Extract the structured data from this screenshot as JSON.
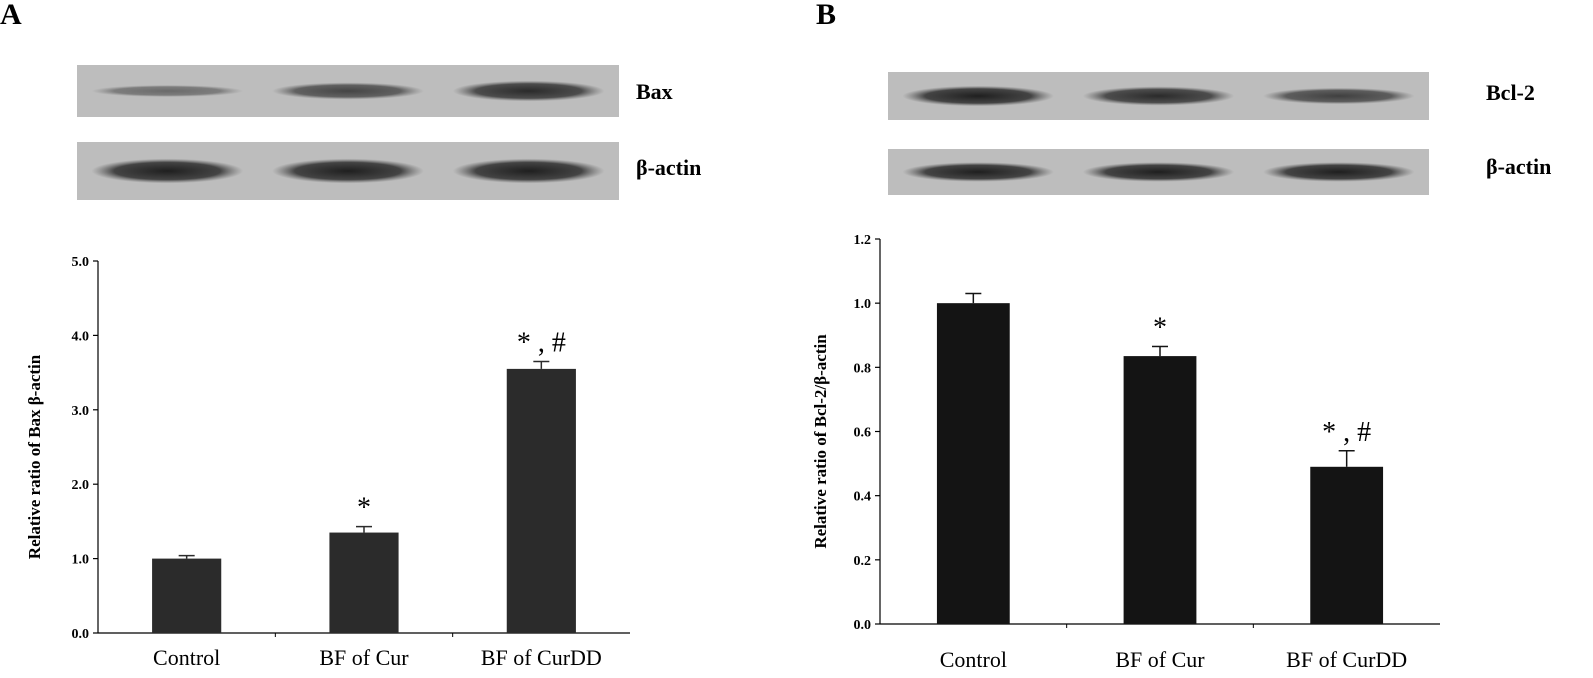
{
  "panels": [
    {
      "letter": "A",
      "blots": [
        {
          "label": "Bax",
          "band_intensity": [
            0.25,
            0.6,
            0.85
          ]
        },
        {
          "label": "β-actin",
          "band_intensity": [
            0.95,
            0.95,
            0.95
          ]
        }
      ]
    },
    {
      "letter": "B",
      "blots": [
        {
          "label": "Bcl-2",
          "band_intensity": [
            0.95,
            0.85,
            0.65
          ]
        },
        {
          "label": "β-actin",
          "band_intensity": [
            0.95,
            0.95,
            0.95
          ]
        }
      ]
    }
  ],
  "chart_data": [
    {
      "type": "bar",
      "categories": [
        "Control",
        "BF of Cur",
        "BF of CurDD"
      ],
      "values": [
        1.0,
        1.35,
        3.55
      ],
      "errors": [
        0.04,
        0.08,
        0.1
      ],
      "significance": [
        "",
        "*",
        "* , #"
      ],
      "ylabel": "Relative ratio of Bax β-actin",
      "ylim": [
        0.0,
        5.0
      ],
      "yticks": [
        "0.0",
        "1.0",
        "2.0",
        "3.0",
        "4.0",
        "5.0"
      ],
      "ytick_values": [
        0,
        1,
        2,
        3,
        4,
        5
      ],
      "bar_color": "#2b2b2b",
      "grid": false
    },
    {
      "type": "bar",
      "categories": [
        "Control",
        "BF of Cur",
        "BF of CurDD"
      ],
      "values": [
        1.0,
        0.835,
        0.49
      ],
      "errors": [
        0.03,
        0.03,
        0.05
      ],
      "significance": [
        "",
        "*",
        "* , #"
      ],
      "ylabel": "Relative ratio of  Bcl-2/β-actin",
      "ylim": [
        0.0,
        1.2
      ],
      "yticks": [
        "0.0",
        "0.2",
        "0.4",
        "0.6",
        "0.8",
        "1.0",
        "1.2"
      ],
      "ytick_values": [
        0,
        0.2,
        0.4,
        0.6,
        0.8,
        1.0,
        1.2
      ],
      "bar_color": "#141414",
      "grid": false
    }
  ]
}
